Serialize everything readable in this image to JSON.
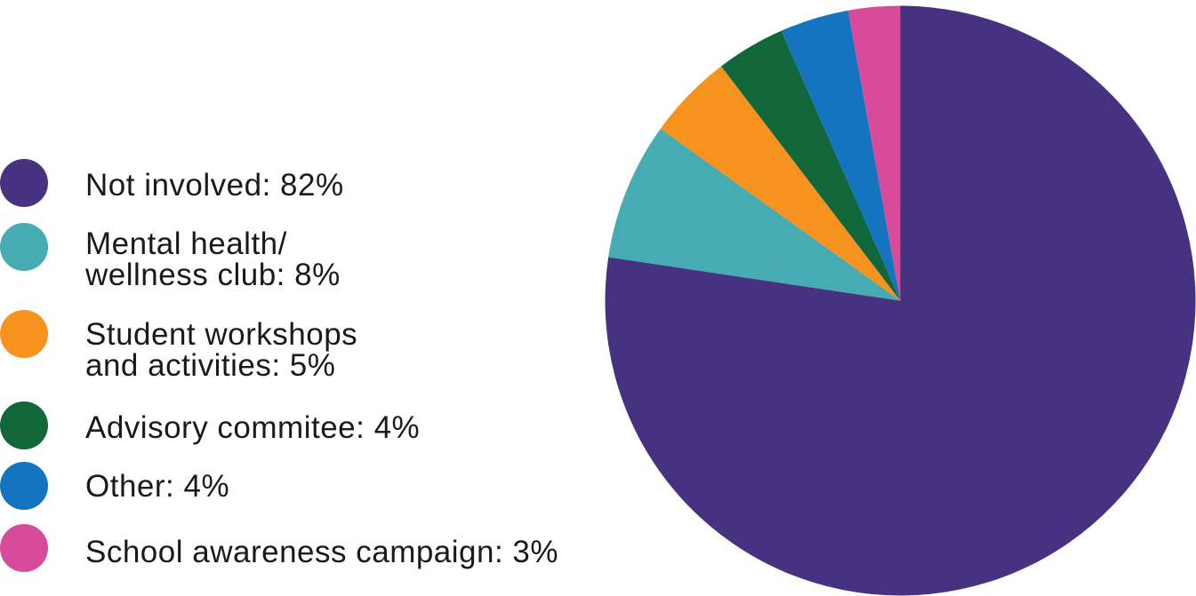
{
  "chart_data": {
    "type": "pie",
    "title": "",
    "slices": [
      {
        "label_lines": [
          "Not involved: 82%"
        ],
        "value": 82,
        "color": "#463280"
      },
      {
        "label_lines": [
          "Mental health/",
          "wellness club: 8%"
        ],
        "value": 8,
        "color": "#47abb3"
      },
      {
        "label_lines": [
          "Student workshops",
          "and activities: 5%"
        ],
        "value": 5,
        "color": "#f6921e"
      },
      {
        "label_lines": [
          "Advisory commitee: 4%"
        ],
        "value": 4,
        "color": "#11673a"
      },
      {
        "label_lines": [
          "Other: 4%"
        ],
        "value": 4,
        "color": "#1474bf"
      },
      {
        "label_lines": [
          "School awareness campaign: 3%"
        ],
        "value": 3,
        "color": "#d84a9a"
      }
    ],
    "legend_position": "left",
    "start": "12 o'clock",
    "direction": "clockwise"
  }
}
